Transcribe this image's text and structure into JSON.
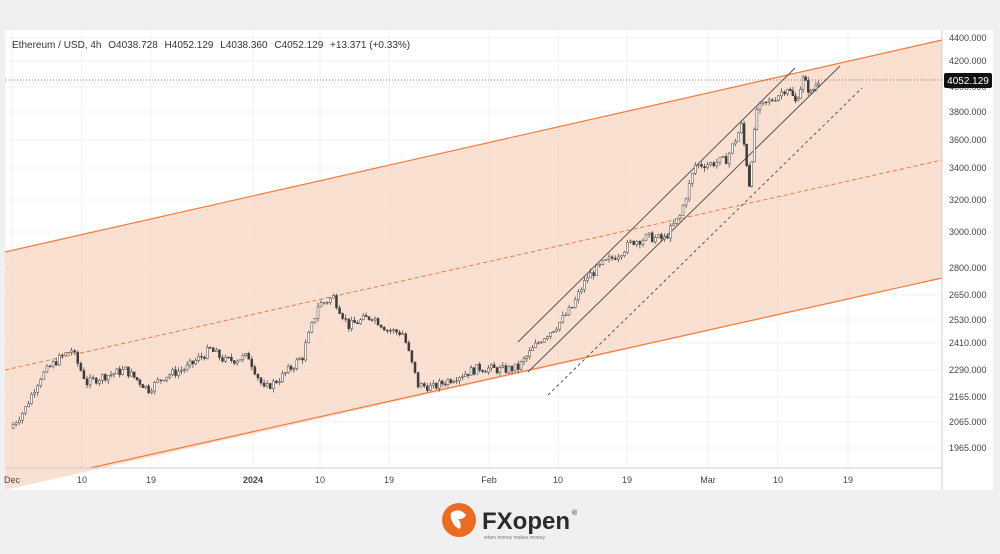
{
  "header": {
    "symbol": "Ethereum / USD, 4h",
    "open": "O4038.728",
    "high": "H4052.129",
    "low": "L4038.360",
    "close": "C4052.129",
    "change": "+13.371 (+0.33%)"
  },
  "price_tag": "4052.129",
  "logo": {
    "brand": "FXopen",
    "tagline": "when money makes money",
    "registered": "®"
  },
  "colors": {
    "channel_fill": "#f8d5c2",
    "channel_line": "#f07a3c",
    "candle": "#3d3d3d",
    "trend_line": "#555555",
    "background": "#ffffff",
    "page": "#f0f0f0"
  },
  "chart_data": {
    "type": "line",
    "title": "",
    "xlabel": "",
    "ylabel": "",
    "ylim": [
      1880,
      4430
    ],
    "y_ticks": [
      "4400.000",
      "4200.000",
      "4000.000",
      "3800.000",
      "3600.000",
      "3400.000",
      "3200.000",
      "3000.000",
      "2800.000",
      "2650.000",
      "2530.000",
      "2410.000",
      "2290.000",
      "2165.000",
      "2065.000",
      "1965.000"
    ],
    "x_ticks": [
      "Dec",
      "10",
      "19",
      "2024",
      "10",
      "19",
      "Feb",
      "10",
      "19",
      "Mar",
      "10",
      "19"
    ],
    "last_price": 4052.129,
    "series": [
      {
        "values": [
          {
            "x": "Dec 1",
            "y": 2040
          },
          {
            "x": "Dec 3",
            "y": 2120
          },
          {
            "x": "Dec 5",
            "y": 2260
          },
          {
            "x": "Dec 7",
            "y": 2330
          },
          {
            "x": "Dec 9",
            "y": 2380
          },
          {
            "x": "Dec 11",
            "y": 2230
          },
          {
            "x": "Dec 13",
            "y": 2260
          },
          {
            "x": "Dec 16",
            "y": 2290
          },
          {
            "x": "Dec 19",
            "y": 2200
          },
          {
            "x": "Dec 21",
            "y": 2260
          },
          {
            "x": "Dec 24",
            "y": 2300
          },
          {
            "x": "Dec 27",
            "y": 2380
          },
          {
            "x": "Dec 29",
            "y": 2330
          },
          {
            "x": "Jan 1",
            "y": 2350
          },
          {
            "x": "Jan 3",
            "y": 2200
          },
          {
            "x": "Jan 5",
            "y": 2250
          },
          {
            "x": "Jan 8",
            "y": 2350
          },
          {
            "x": "Jan 10",
            "y": 2600
          },
          {
            "x": "Jan 12",
            "y": 2640
          },
          {
            "x": "Jan 14",
            "y": 2500
          },
          {
            "x": "Jan 17",
            "y": 2550
          },
          {
            "x": "Jan 19",
            "y": 2480
          },
          {
            "x": "Jan 21",
            "y": 2460
          },
          {
            "x": "Jan 23",
            "y": 2220
          },
          {
            "x": "Jan 25",
            "y": 2210
          },
          {
            "x": "Jan 28",
            "y": 2260
          },
          {
            "x": "Jan 31",
            "y": 2300
          },
          {
            "x": "Feb 3",
            "y": 2290
          },
          {
            "x": "Feb 5",
            "y": 2300
          },
          {
            "x": "Feb 8",
            "y": 2430
          },
          {
            "x": "Feb 10",
            "y": 2500
          },
          {
            "x": "Feb 12",
            "y": 2590
          },
          {
            "x": "Feb 14",
            "y": 2750
          },
          {
            "x": "Feb 16",
            "y": 2820
          },
          {
            "x": "Feb 18",
            "y": 2880
          },
          {
            "x": "Feb 20",
            "y": 2950
          },
          {
            "x": "Feb 22",
            "y": 2970
          },
          {
            "x": "Feb 24",
            "y": 2960
          },
          {
            "x": "Feb 26",
            "y": 3100
          },
          {
            "x": "Feb 28",
            "y": 3420
          },
          {
            "x": "Mar 1",
            "y": 3430
          },
          {
            "x": "Mar 3",
            "y": 3460
          },
          {
            "x": "Mar 5",
            "y": 3700
          },
          {
            "x": "Mar 6",
            "y": 3300
          },
          {
            "x": "Mar 7",
            "y": 3820
          },
          {
            "x": "Mar 9",
            "y": 3900
          },
          {
            "x": "Mar 11",
            "y": 4000
          },
          {
            "x": "Mar 12",
            "y": 3880
          },
          {
            "x": "Mar 13",
            "y": 4060
          },
          {
            "x": "Mar 14",
            "y": 3950
          },
          {
            "x": "Mar 15",
            "y": 4052
          }
        ]
      }
    ],
    "grid": true
  }
}
